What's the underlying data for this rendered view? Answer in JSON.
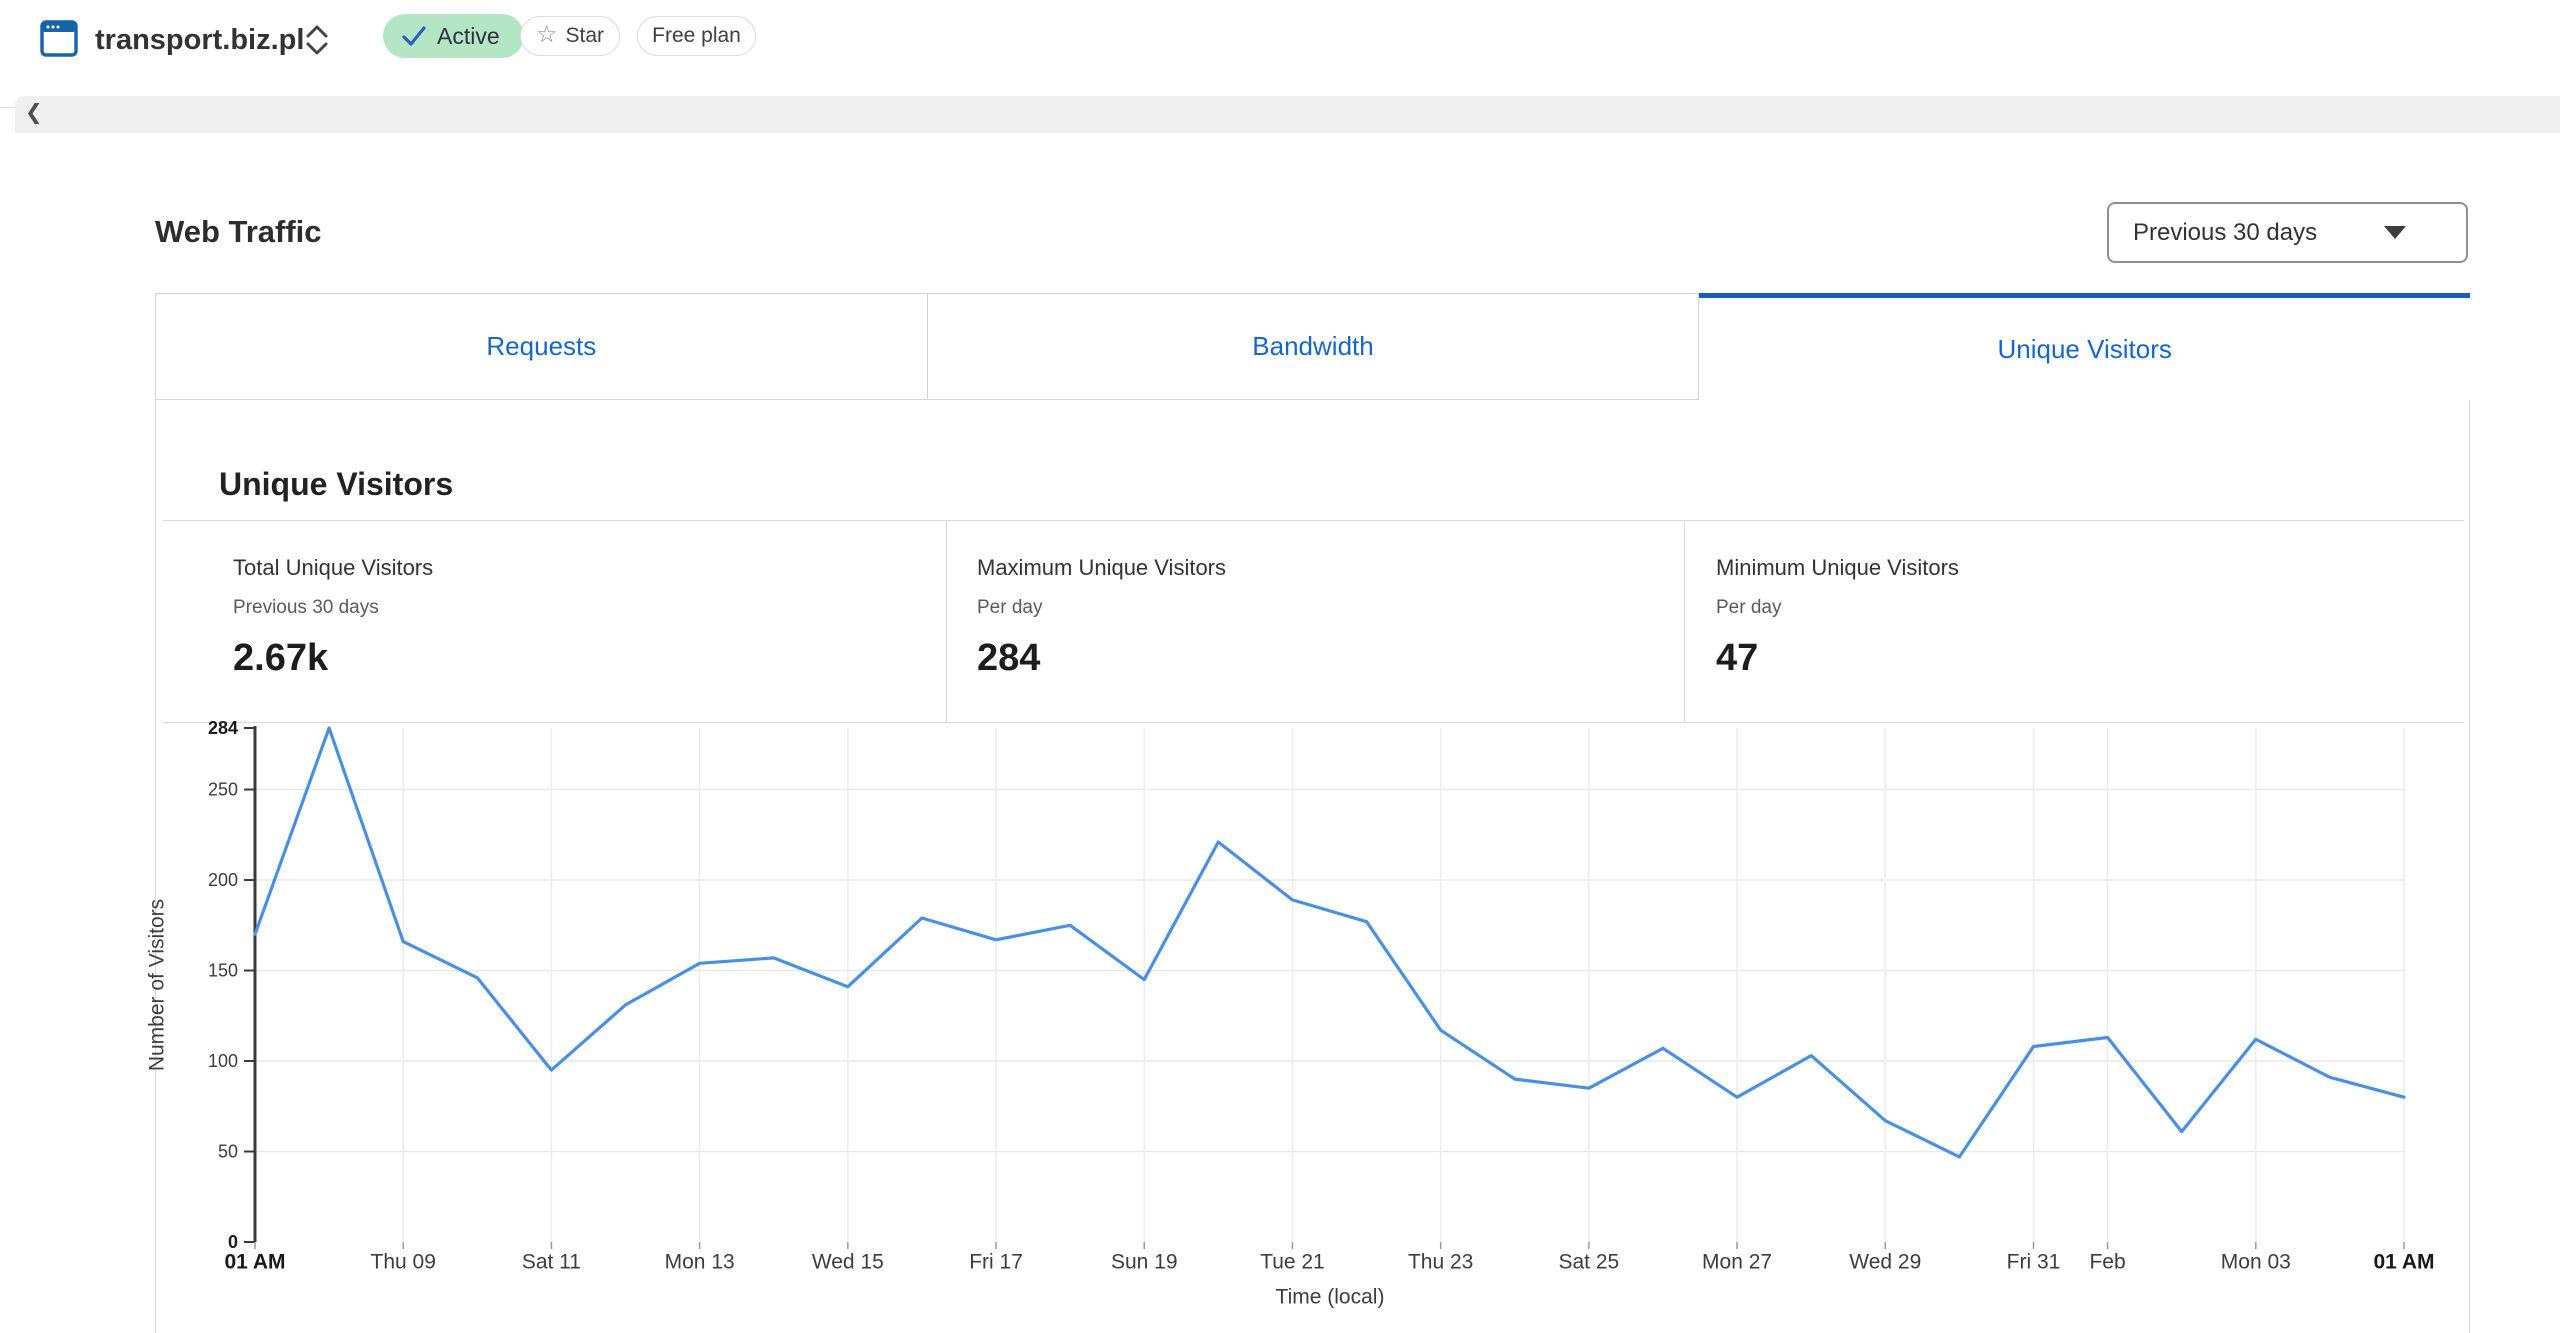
{
  "header": {
    "site_name": "transport.biz.pl",
    "status_badge": "Active",
    "star_label": "Star",
    "plan_label": "Free plan"
  },
  "icons": {
    "back_chevron": "❮",
    "star": "☆",
    "check": "✓"
  },
  "page": {
    "title": "Web Traffic",
    "date_range": "Previous 30 days"
  },
  "tabs": [
    {
      "label": "Requests",
      "active": false
    },
    {
      "label": "Bandwidth",
      "active": false
    },
    {
      "label": "Unique Visitors",
      "active": true
    }
  ],
  "section": {
    "heading": "Unique Visitors"
  },
  "stats": [
    {
      "title": "Total Unique Visitors",
      "period": "Previous 30 days",
      "value": "2.67k"
    },
    {
      "title": "Maximum Unique Visitors",
      "period": "Per day",
      "value": "284"
    },
    {
      "title": "Minimum Unique Visitors",
      "period": "Per day",
      "value": "47"
    }
  ],
  "chart_data": {
    "type": "line",
    "series_name": "Unique Visitors per day",
    "values": [
      170,
      284,
      166,
      146,
      95,
      131,
      154,
      157,
      141,
      179,
      167,
      175,
      145,
      221,
      189,
      177,
      117,
      90,
      85,
      107,
      80,
      103,
      67,
      47,
      108,
      113,
      61,
      112,
      91,
      80
    ],
    "x_ticks": [
      {
        "pos": 0,
        "label": "01 AM",
        "bold": true
      },
      {
        "pos": 2,
        "label": "Thu 09"
      },
      {
        "pos": 4,
        "label": "Sat 11"
      },
      {
        "pos": 6,
        "label": "Mon 13"
      },
      {
        "pos": 8,
        "label": "Wed 15"
      },
      {
        "pos": 10,
        "label": "Fri 17"
      },
      {
        "pos": 12,
        "label": "Sun 19"
      },
      {
        "pos": 14,
        "label": "Tue 21"
      },
      {
        "pos": 16,
        "label": "Thu 23"
      },
      {
        "pos": 18,
        "label": "Sat 25"
      },
      {
        "pos": 20,
        "label": "Mon 27"
      },
      {
        "pos": 22,
        "label": "Wed 29"
      },
      {
        "pos": 24,
        "label": "Fri 31"
      },
      {
        "pos": 25,
        "label": "Feb"
      },
      {
        "pos": 27,
        "label": "Mon 03"
      },
      {
        "pos": 29,
        "label": "01 AM",
        "bold": true
      }
    ],
    "y_ticks": [
      0,
      50,
      100,
      150,
      200,
      250,
      284
    ],
    "y_bold": [
      0,
      284
    ],
    "ylim": [
      0,
      284
    ],
    "xlabel": "Time (local)",
    "ylabel": "Number of Visitors",
    "grid": true,
    "line_color": "#4a90e2"
  }
}
